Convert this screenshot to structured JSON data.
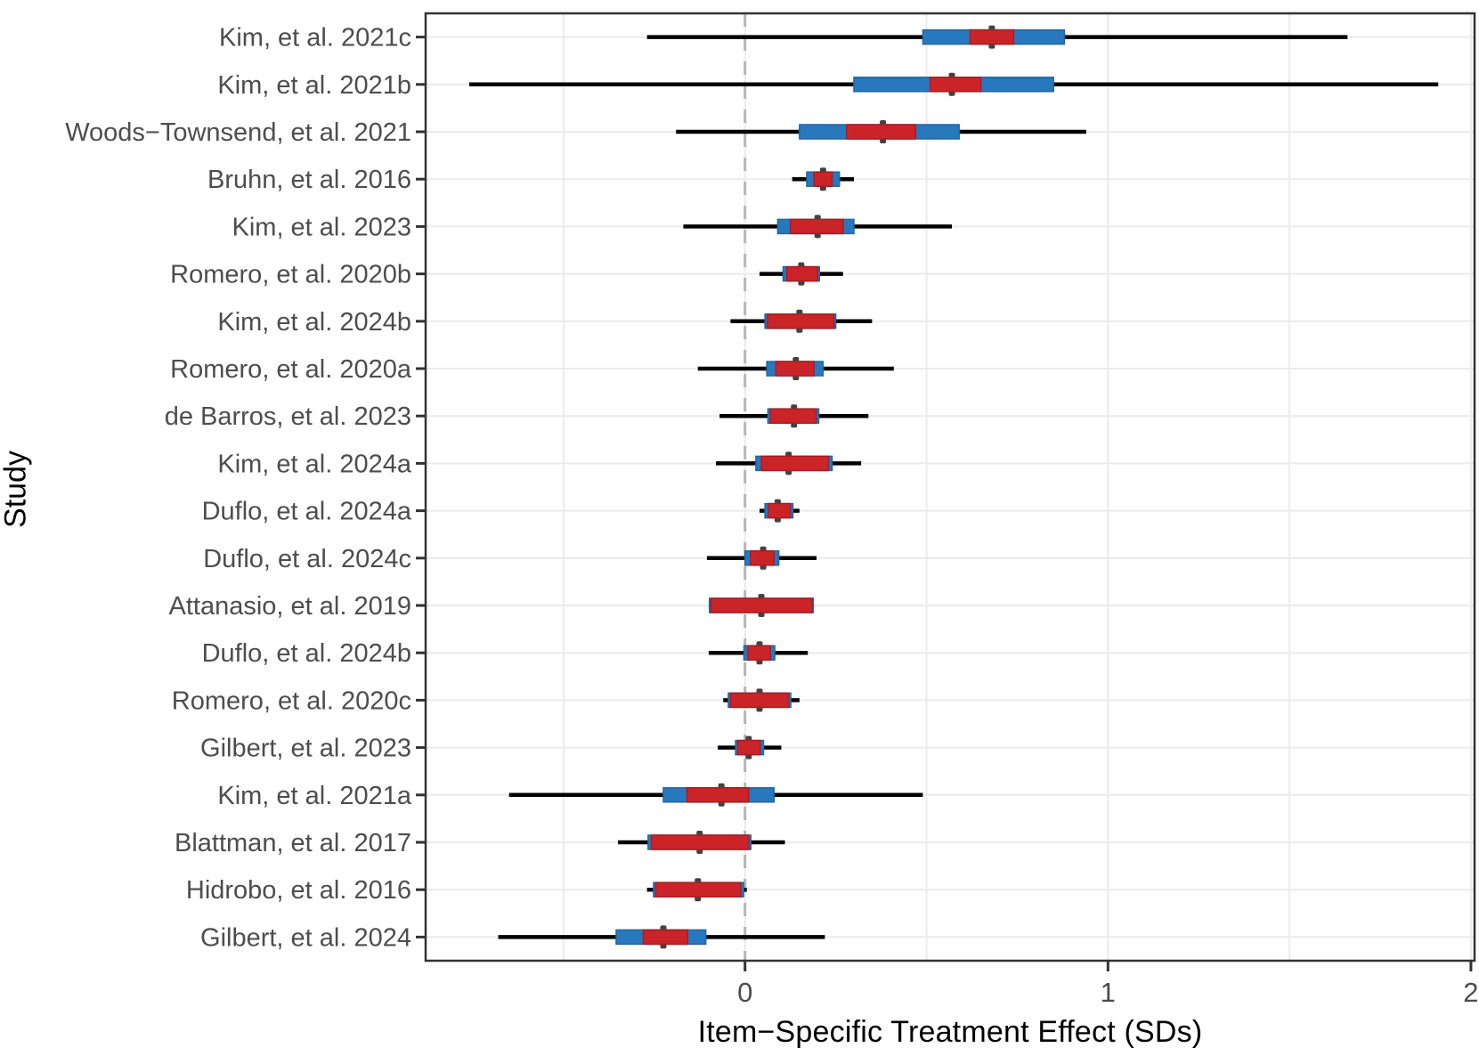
{
  "figure": {
    "x_axis_title": "Item−Specific Treatment Effect (SDs)",
    "y_axis_title": "Study"
  },
  "chart_data": {
    "type": "boxplot",
    "orientation": "horizontal",
    "title": "",
    "xlabel": "Item−Specific Treatment Effect (SDs)",
    "ylabel": "Study",
    "xlim": [
      -0.88,
      2.01
    ],
    "x_major_ticks": [
      0,
      1,
      2
    ],
    "x_minor_gridlines": [
      -0.5,
      0.5,
      1.5
    ],
    "zero_reference_line": 0,
    "grid": "on",
    "legend_position": "none",
    "colors": {
      "outer_box": "#2878bd",
      "outer_box_border": "#2266a4",
      "inner_box": "#cb2428",
      "inner_box_border": "#a91d22",
      "median_marker": "#47403b",
      "whisker": "#000000",
      "gridline": "#ebebeb",
      "zero_line": "#b5b5b5",
      "panel_border": "#333333",
      "tick_label": "#4d4d4d",
      "study_label": "#4d4d4d"
    },
    "studies": [
      {
        "label": "Kim, et al. 2021c",
        "whisker": [
          -0.27,
          1.66
        ],
        "outer_box": [
          0.49,
          0.88
        ],
        "inner_box": [
          0.62,
          0.74
        ],
        "median": 0.68
      },
      {
        "label": "Kim, et al. 2021b",
        "whisker": [
          -0.76,
          1.91
        ],
        "outer_box": [
          0.3,
          0.85
        ],
        "inner_box": [
          0.51,
          0.65
        ],
        "median": 0.57
      },
      {
        "label": "Woods−Townsend, et al. 2021",
        "whisker": [
          -0.19,
          0.94
        ],
        "outer_box": [
          0.15,
          0.59
        ],
        "inner_box": [
          0.28,
          0.47
        ],
        "median": 0.38
      },
      {
        "label": "Bruhn, et al. 2016",
        "whisker": [
          0.13,
          0.3
        ],
        "outer_box": [
          0.17,
          0.26
        ],
        "inner_box": [
          0.19,
          0.24
        ],
        "median": 0.215
      },
      {
        "label": "Kim, et al. 2023",
        "whisker": [
          -0.17,
          0.57
        ],
        "outer_box": [
          0.09,
          0.3
        ],
        "inner_box": [
          0.125,
          0.27
        ],
        "median": 0.2
      },
      {
        "label": "Romero, et al. 2020b",
        "whisker": [
          0.04,
          0.27
        ],
        "outer_box": [
          0.105,
          0.205
        ],
        "inner_box": [
          0.115,
          0.2
        ],
        "median": 0.155
      },
      {
        "label": "Kim, et al. 2024b",
        "whisker": [
          -0.04,
          0.35
        ],
        "outer_box": [
          0.055,
          0.25
        ],
        "inner_box": [
          0.062,
          0.245
        ],
        "median": 0.15
      },
      {
        "label": "Romero, et al. 2020a",
        "whisker": [
          -0.13,
          0.41
        ],
        "outer_box": [
          0.06,
          0.215
        ],
        "inner_box": [
          0.085,
          0.19
        ],
        "median": 0.14
      },
      {
        "label": "de Barros, et al. 2023",
        "whisker": [
          -0.07,
          0.34
        ],
        "outer_box": [
          0.063,
          0.203
        ],
        "inner_box": [
          0.07,
          0.196
        ],
        "median": 0.135
      },
      {
        "label": "Kim, et al. 2024a",
        "whisker": [
          -0.08,
          0.32
        ],
        "outer_box": [
          0.03,
          0.24
        ],
        "inner_box": [
          0.045,
          0.23
        ],
        "median": 0.12
      },
      {
        "label": "Duflo, et al. 2024a",
        "whisker": [
          0.04,
          0.15
        ],
        "outer_box": [
          0.055,
          0.132
        ],
        "inner_box": [
          0.064,
          0.125
        ],
        "median": 0.09
      },
      {
        "label": "Duflo, et al. 2024c",
        "whisker": [
          -0.105,
          0.197
        ],
        "outer_box": [
          0.0,
          0.093
        ],
        "inner_box": [
          0.015,
          0.08
        ],
        "median": 0.05
      },
      {
        "label": "Attanasio, et al. 2019",
        "whisker": [
          -0.1,
          0.19
        ],
        "outer_box": [
          -0.098,
          0.188
        ],
        "inner_box": [
          -0.094,
          0.185
        ],
        "median": 0.045
      },
      {
        "label": "Duflo, et al. 2024b",
        "whisker": [
          -0.1,
          0.173
        ],
        "outer_box": [
          -0.003,
          0.082
        ],
        "inner_box": [
          0.008,
          0.07
        ],
        "median": 0.04
      },
      {
        "label": "Romero, et al. 2020c",
        "whisker": [
          -0.06,
          0.15
        ],
        "outer_box": [
          -0.046,
          0.126
        ],
        "inner_box": [
          -0.04,
          0.12
        ],
        "median": 0.04
      },
      {
        "label": "Gilbert, et al. 2023",
        "whisker": [
          -0.075,
          0.1
        ],
        "outer_box": [
          -0.026,
          0.051
        ],
        "inner_box": [
          -0.02,
          0.042
        ],
        "median": 0.01
      },
      {
        "label": "Kim, et al. 2021a",
        "whisker": [
          -0.65,
          0.49
        ],
        "outer_box": [
          -0.225,
          0.08
        ],
        "inner_box": [
          -0.16,
          0.01
        ],
        "median": -0.065
      },
      {
        "label": "Blattman, et al. 2017",
        "whisker": [
          -0.35,
          0.11
        ],
        "outer_box": [
          -0.267,
          0.016
        ],
        "inner_box": [
          -0.258,
          0.01
        ],
        "median": -0.125
      },
      {
        "label": "Hidrobo, et al. 2016",
        "whisker": [
          -0.27,
          0.005
        ],
        "outer_box": [
          -0.252,
          -0.004
        ],
        "inner_box": [
          -0.246,
          -0.012
        ],
        "median": -0.13
      },
      {
        "label": "Gilbert, et al. 2024",
        "whisker": [
          -0.68,
          0.22
        ],
        "outer_box": [
          -0.355,
          -0.108
        ],
        "inner_box": [
          -0.28,
          -0.158
        ],
        "median": -0.225
      }
    ]
  }
}
